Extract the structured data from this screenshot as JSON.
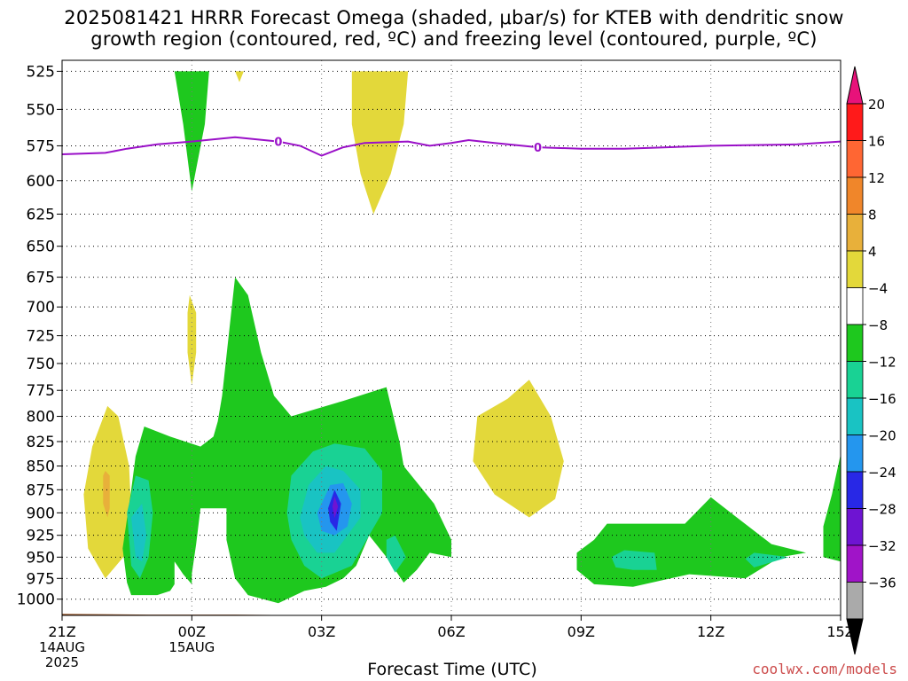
{
  "title_line1": "2025081421 HRRR Forecast Omega (shaded, μbar/s) for KTEB with dendritic snow",
  "title_line2": "growth region (contoured, red, ºC) and freezing level (contoured, purple, ºC)",
  "credit": "coolwx.com/models",
  "colors": {
    "credit": "#cc4b4b",
    "freezing_line": "#9a10c8",
    "ground": "#9b5a2d"
  },
  "chart_data": {
    "type": "contour",
    "title": "2025081421 HRRR Forecast Omega (shaded, μbar/s) for KTEB with dendritic snow growth region (contoured, red, ºC) and freezing level (contoured, purple, ºC)",
    "xlabel": "Forecast Time (UTC)",
    "ylabel": "",
    "x_ticks": [
      {
        "hour": 0,
        "label": "21Z",
        "sub1": "14AUG",
        "sub2": "2025"
      },
      {
        "hour": 3,
        "label": "00Z",
        "sub1": "15AUG",
        "sub2": ""
      },
      {
        "hour": 6,
        "label": "03Z",
        "sub1": "",
        "sub2": ""
      },
      {
        "hour": 9,
        "label": "06Z",
        "sub1": "",
        "sub2": ""
      },
      {
        "hour": 12,
        "label": "09Z",
        "sub1": "",
        "sub2": ""
      },
      {
        "hour": 15,
        "label": "12Z",
        "sub1": "",
        "sub2": ""
      },
      {
        "hour": 18,
        "label": "15Z",
        "sub1": "",
        "sub2": ""
      }
    ],
    "y_ticks": [
      525,
      550,
      575,
      600,
      625,
      650,
      675,
      700,
      725,
      750,
      775,
      800,
      825,
      850,
      875,
      900,
      925,
      950,
      975,
      1000
    ],
    "xlim_hours": [
      0,
      18
    ],
    "ylim_hpa": [
      1020,
      518
    ],
    "y_scale": "log-pressure (inverted)",
    "grid": true,
    "colorbar": {
      "labels": [
        "20",
        "16",
        "12",
        "8",
        "4",
        "−4",
        "−8",
        "−12",
        "−16",
        "−20",
        "−24",
        "−28",
        "−32",
        "−36"
      ],
      "colors": [
        "#ff1a1a",
        "#ff6633",
        "#f0862a",
        "#e8b03a",
        "#e3d83a",
        "#ffffff",
        "#1ec81e",
        "#19d294",
        "#19c3c3",
        "#2496ee",
        "#2828e6",
        "#6e14d2",
        "#a014c8",
        "#aaaaaa"
      ],
      "top_color": "#e8127a",
      "bottom_color": "#000000"
    },
    "omega_regions": [
      {
        "level": "-4 to -8",
        "color": "#1ec81e",
        "polygon": [
          [
            2.6,
            525
          ],
          [
            3.4,
            525
          ],
          [
            3.3,
            560
          ],
          [
            3.0,
            608
          ],
          [
            2.8,
            560
          ]
        ]
      },
      {
        "level": "4 to 8",
        "color": "#e3d83a",
        "polygon": [
          [
            4.0,
            525
          ],
          [
            4.2,
            525
          ],
          [
            4.1,
            532
          ]
        ]
      },
      {
        "level": "4 to 8",
        "color": "#e3d83a",
        "polygon": [
          [
            6.7,
            525
          ],
          [
            8.0,
            525
          ],
          [
            7.9,
            560
          ],
          [
            7.6,
            595
          ],
          [
            7.2,
            625
          ],
          [
            6.9,
            595
          ],
          [
            6.7,
            560
          ]
        ]
      },
      {
        "level": "4 to 8",
        "color": "#e3d83a",
        "polygon": [
          [
            2.95,
            690
          ],
          [
            3.1,
            705
          ],
          [
            3.1,
            740
          ],
          [
            3.0,
            770
          ],
          [
            2.9,
            740
          ],
          [
            2.9,
            705
          ]
        ]
      },
      {
        "level": "4 to 8",
        "color": "#e3d83a",
        "polygon": [
          [
            1.05,
            790
          ],
          [
            1.3,
            800
          ],
          [
            1.55,
            850
          ],
          [
            1.6,
            900
          ],
          [
            1.5,
            945
          ],
          [
            1.0,
            975
          ],
          [
            0.6,
            940
          ],
          [
            0.5,
            880
          ],
          [
            0.7,
            830
          ]
        ]
      },
      {
        "level": "8 to 12",
        "color": "#e8b03a",
        "polygon": [
          [
            1.0,
            855
          ],
          [
            1.1,
            860
          ],
          [
            1.1,
            895
          ],
          [
            1.05,
            905
          ],
          [
            0.95,
            890
          ],
          [
            0.95,
            860
          ]
        ]
      },
      {
        "level": "4 to 8",
        "color": "#e3d83a",
        "polygon": [
          [
            9.6,
            800
          ],
          [
            10.3,
            783
          ],
          [
            10.8,
            765
          ],
          [
            11.3,
            800
          ],
          [
            11.6,
            845
          ],
          [
            11.4,
            885
          ],
          [
            10.8,
            905
          ],
          [
            10.0,
            880
          ],
          [
            9.5,
            845
          ]
        ]
      },
      {
        "level": "-4 to -8",
        "color": "#1ec81e",
        "polygon": [
          [
            4.0,
            675
          ],
          [
            4.3,
            690
          ],
          [
            4.6,
            740
          ],
          [
            4.9,
            780
          ],
          [
            5.3,
            800
          ],
          [
            6.5,
            785
          ],
          [
            7.5,
            772
          ],
          [
            7.8,
            825
          ],
          [
            7.9,
            850
          ],
          [
            8.6,
            890
          ],
          [
            9.0,
            930
          ],
          [
            9.0,
            950
          ],
          [
            8.5,
            945
          ],
          [
            8.2,
            965
          ],
          [
            7.9,
            980
          ],
          [
            7.5,
            950
          ],
          [
            7.1,
            925
          ],
          [
            6.8,
            960
          ],
          [
            6.5,
            975
          ],
          [
            6.1,
            985
          ],
          [
            5.6,
            990
          ],
          [
            5.0,
            1005
          ],
          [
            4.3,
            995
          ],
          [
            4.0,
            975
          ],
          [
            3.8,
            930
          ],
          [
            3.8,
            895
          ],
          [
            3.2,
            895
          ],
          [
            3.1,
            935
          ],
          [
            3.0,
            970
          ],
          [
            3.0,
            982
          ],
          [
            2.8,
            970
          ],
          [
            2.6,
            955
          ],
          [
            2.6,
            982
          ],
          [
            2.5,
            990
          ],
          [
            2.2,
            995
          ],
          [
            1.6,
            995
          ],
          [
            1.5,
            980
          ],
          [
            1.4,
            940
          ],
          [
            1.6,
            875
          ],
          [
            1.7,
            840
          ],
          [
            1.9,
            810
          ],
          [
            2.5,
            820
          ],
          [
            3.2,
            830
          ],
          [
            3.5,
            820
          ],
          [
            3.6,
            805
          ],
          [
            3.7,
            780
          ]
        ]
      },
      {
        "level": "-8 to -12",
        "color": "#19d294",
        "polygon": [
          [
            5.2,
            900
          ],
          [
            5.3,
            860
          ],
          [
            5.8,
            835
          ],
          [
            6.3,
            827
          ],
          [
            7.0,
            832
          ],
          [
            7.4,
            855
          ],
          [
            7.4,
            900
          ],
          [
            7.1,
            925
          ],
          [
            6.7,
            960
          ],
          [
            6.0,
            975
          ],
          [
            5.6,
            960
          ],
          [
            5.3,
            930
          ]
        ]
      },
      {
        "level": "-12 to -16",
        "color": "#19c3c3",
        "polygon": [
          [
            5.5,
            905
          ],
          [
            5.7,
            870
          ],
          [
            6.1,
            850
          ],
          [
            6.5,
            855
          ],
          [
            6.9,
            875
          ],
          [
            6.9,
            905
          ],
          [
            6.6,
            925
          ],
          [
            6.3,
            945
          ],
          [
            5.9,
            945
          ],
          [
            5.6,
            925
          ]
        ]
      },
      {
        "level": "-16 to -20",
        "color": "#2496ee",
        "polygon": [
          [
            5.9,
            900
          ],
          [
            6.2,
            870
          ],
          [
            6.5,
            868
          ],
          [
            6.7,
            890
          ],
          [
            6.6,
            915
          ],
          [
            6.3,
            925
          ],
          [
            6.0,
            920
          ]
        ]
      },
      {
        "level": "-20 to -24",
        "color": "#2828e6",
        "polygon": [
          [
            6.15,
            895
          ],
          [
            6.3,
            875
          ],
          [
            6.45,
            890
          ],
          [
            6.35,
            920
          ],
          [
            6.2,
            910
          ]
        ]
      },
      {
        "level": "-24 to -28",
        "color": "#6e14d2",
        "polygon": [
          [
            6.25,
            893
          ],
          [
            6.3,
            882
          ],
          [
            6.38,
            893
          ],
          [
            6.3,
            906
          ]
        ]
      },
      {
        "level": "-8 to -12",
        "color": "#19d294",
        "polygon": [
          [
            1.5,
            900
          ],
          [
            1.7,
            860
          ],
          [
            2.0,
            865
          ],
          [
            2.1,
            900
          ],
          [
            2.0,
            950
          ],
          [
            1.8,
            975
          ],
          [
            1.6,
            960
          ]
        ]
      },
      {
        "level": "-12 to -16",
        "color": "#19c3c3",
        "polygon": [
          [
            1.6,
            905
          ],
          [
            1.85,
            890
          ],
          [
            1.95,
            925
          ],
          [
            1.85,
            955
          ],
          [
            1.7,
            950
          ]
        ]
      },
      {
        "level": "-8 to -12",
        "color": "#19d294",
        "polygon": [
          [
            7.5,
            930
          ],
          [
            7.7,
            925
          ],
          [
            7.95,
            950
          ],
          [
            7.7,
            968
          ],
          [
            7.5,
            950
          ]
        ]
      },
      {
        "level": "-4 to -8",
        "color": "#1ec81e",
        "polygon": [
          [
            12.3,
            930
          ],
          [
            12.6,
            912
          ],
          [
            13.5,
            912
          ],
          [
            14.4,
            912
          ],
          [
            15.0,
            883
          ],
          [
            15.6,
            905
          ],
          [
            16.4,
            935
          ],
          [
            17.2,
            945
          ],
          [
            16.6,
            950
          ],
          [
            15.8,
            975
          ],
          [
            14.5,
            970
          ],
          [
            13.2,
            985
          ],
          [
            12.3,
            982
          ],
          [
            11.9,
            965
          ],
          [
            11.9,
            945
          ]
        ]
      },
      {
        "level": "-8 to -12",
        "color": "#19d294",
        "polygon": [
          [
            12.7,
            950
          ],
          [
            13.0,
            942
          ],
          [
            13.7,
            945
          ],
          [
            13.75,
            965
          ],
          [
            13.2,
            965
          ],
          [
            12.8,
            962
          ]
        ]
      },
      {
        "level": "-8 to -12",
        "color": "#19d294",
        "polygon": [
          [
            15.8,
            952
          ],
          [
            16.0,
            945
          ],
          [
            16.8,
            950
          ],
          [
            16.0,
            962
          ]
        ]
      },
      {
        "level": "-4 to -8",
        "color": "#1ec81e",
        "polygon": [
          [
            18.0,
            838
          ],
          [
            18.0,
            955
          ],
          [
            17.6,
            950
          ],
          [
            17.6,
            915
          ],
          [
            17.8,
            880
          ]
        ]
      }
    ],
    "freezing_level": {
      "contour_value": "0",
      "label_hours": [
        5.0,
        11.0
      ],
      "points": [
        [
          0,
          581
        ],
        [
          1.0,
          580
        ],
        [
          1.5,
          577
        ],
        [
          2.2,
          574
        ],
        [
          3.0,
          572
        ],
        [
          4.0,
          569
        ],
        [
          5.0,
          572
        ],
        [
          5.5,
          575
        ],
        [
          6.0,
          582
        ],
        [
          6.5,
          576
        ],
        [
          7.0,
          573
        ],
        [
          8.0,
          572
        ],
        [
          8.5,
          575
        ],
        [
          9.0,
          573
        ],
        [
          9.4,
          571
        ],
        [
          10.0,
          573
        ],
        [
          11.0,
          576
        ],
        [
          12.0,
          577
        ],
        [
          13.0,
          577
        ],
        [
          15.0,
          575
        ],
        [
          17.0,
          574
        ],
        [
          18.0,
          572
        ]
      ]
    },
    "ground": [
      [
        0,
        1018
      ],
      [
        2,
        1019
      ],
      [
        4,
        1019
      ],
      [
        6,
        1020
      ],
      [
        8,
        1020
      ],
      [
        12,
        1020
      ],
      [
        14,
        1020
      ],
      [
        18,
        1020
      ]
    ]
  }
}
